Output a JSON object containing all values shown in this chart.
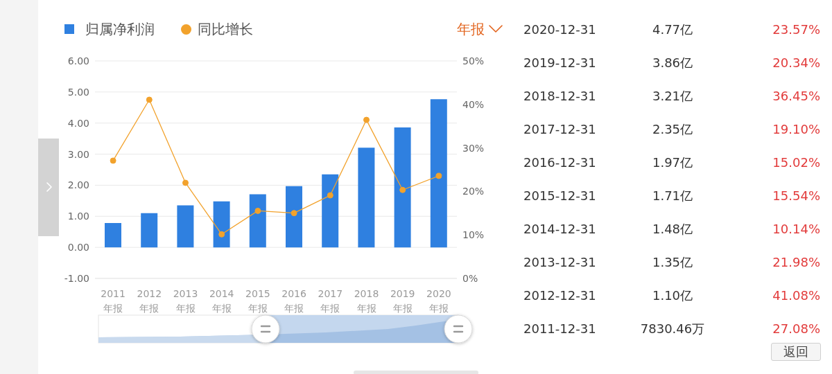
{
  "chart_data": [
    {
      "type": "bar",
      "categories": [
        "2011\n年报",
        "2012\n年报",
        "2013\n年报",
        "2014\n年报",
        "2015\n年报",
        "2016\n年报",
        "2017\n年报",
        "2018\n年报",
        "2019\n年报",
        "2020\n年报"
      ],
      "series": [
        {
          "name": "归属净利润",
          "type": "bar",
          "color": "#2f80e0",
          "values": [
            0.783046,
            1.1,
            1.35,
            1.48,
            1.71,
            1.97,
            2.35,
            3.21,
            3.86,
            4.77
          ]
        },
        {
          "name": "同比增长",
          "type": "line",
          "axis": "y2",
          "color": "#f2a22c",
          "values": [
            27.08,
            41.08,
            21.98,
            10.14,
            15.54,
            15.02,
            19.1,
            36.45,
            20.34,
            23.57
          ]
        }
      ],
      "ylim": [
        -1,
        6
      ],
      "yticks": [
        {
          "value": -1,
          "label": "-1.00"
        },
        {
          "value": 0,
          "label": "0.00"
        },
        {
          "value": 1,
          "label": "1.00"
        },
        {
          "value": 2,
          "label": "2.00"
        },
        {
          "value": 3,
          "label": "3.00"
        },
        {
          "value": 4,
          "label": "4.00"
        },
        {
          "value": 5,
          "label": "5.00"
        },
        {
          "value": 6,
          "label": "6.00"
        }
      ],
      "y2lim": [
        0,
        50
      ],
      "y2ticks": [
        {
          "value": 0,
          "label": "0%"
        },
        {
          "value": 10,
          "label": "10%"
        },
        {
          "value": 20,
          "label": "20%"
        },
        {
          "value": 30,
          "label": "30%"
        },
        {
          "value": 40,
          "label": "40%"
        },
        {
          "value": 50,
          "label": "50%"
        }
      ],
      "grid": "y",
      "legend": "top left",
      "marker": "circle",
      "annotations": [
        "年报"
      ]
    },
    {
      "type": "other",
      "annotations": [
        "2020-12-31",
        "4.77亿",
        "23.57%",
        "2019-12-31",
        "3.86亿",
        "20.34%",
        "2018-12-31",
        "3.21亿",
        "36.45%",
        "2017-12-31",
        "2.35亿",
        "19.10%",
        "2016-12-31",
        "1.97亿",
        "15.02%",
        "2015-12-31",
        "1.71亿",
        "15.54%",
        "2014-12-31",
        "1.48亿",
        "10.14%",
        "2013-12-31",
        "1.35亿",
        "21.98%",
        "2012-12-31",
        "1.10亿",
        "41.08%",
        "2011-12-31",
        "7830.46万",
        "27.08%",
        "返回"
      ]
    }
  ]
}
